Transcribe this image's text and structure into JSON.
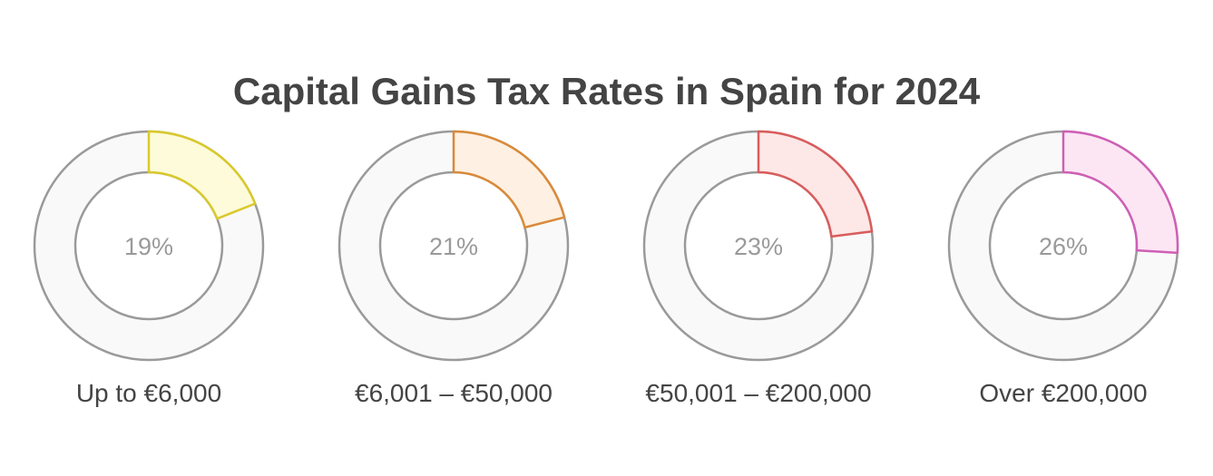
{
  "title": "Capital Gains Tax Rates in Spain for 2024",
  "chart_data": {
    "type": "pie",
    "subtype": "donut",
    "title": "Capital Gains Tax Rates in Spain for 2024",
    "categories": [
      "Up to €6,000",
      "€6,001 – €50,000",
      "€50,001 – €200,000",
      "Over €200,000"
    ],
    "values": [
      19,
      21,
      23,
      26
    ],
    "value_labels": [
      "19%",
      "21%",
      "23%",
      "26%"
    ],
    "unit": "%",
    "max": 100,
    "colors": {
      "stroke": [
        "#d9c92b",
        "#d98a3a",
        "#d95c5c",
        "#cf5fb5"
      ],
      "fill": [
        "#fdfbd9",
        "#fef0e2",
        "#fde7e7",
        "#fce6f4"
      ],
      "track_stroke": "#9a9a9a",
      "track_fill": "#f9f9f9"
    }
  }
}
